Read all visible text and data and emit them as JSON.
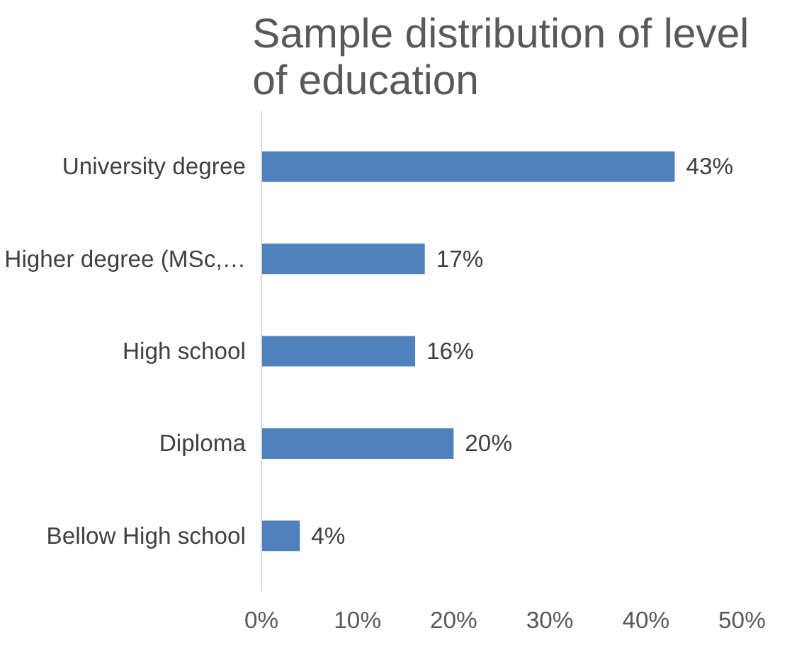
{
  "chart_data": {
    "type": "bar",
    "orientation": "horizontal",
    "title": "Sample distribution of  level of education",
    "categories": [
      "University degree",
      "Higher degree (MSc,…",
      "High school",
      "Diploma",
      "Bellow High school"
    ],
    "values": [
      43,
      17,
      16,
      20,
      4
    ],
    "color": "#4f81bd",
    "value_labels": [
      "43%",
      "17%",
      "16%",
      "20%",
      "4%"
    ],
    "xlim": [
      0,
      50
    ],
    "xticks": [
      {
        "value": 0,
        "label": "0%"
      },
      {
        "value": 10,
        "label": "10%"
      },
      {
        "value": 20,
        "label": "20%"
      },
      {
        "value": 30,
        "label": "30%"
      },
      {
        "value": 40,
        "label": "40%"
      },
      {
        "value": 50,
        "label": "50%"
      }
    ],
    "grid": false
  }
}
